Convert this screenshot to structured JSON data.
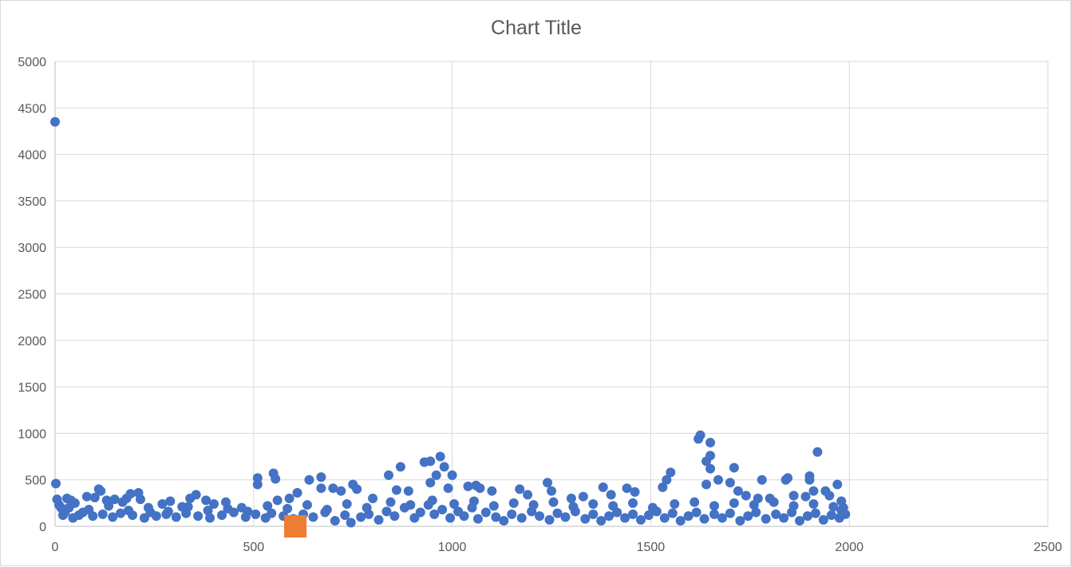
{
  "chart_data": {
    "type": "scatter",
    "title": "Chart Title",
    "xlabel": "",
    "ylabel": "",
    "xlim": [
      0,
      2500
    ],
    "ylim": [
      0,
      5000
    ],
    "x_ticks": [
      "0",
      "500",
      "1000",
      "1500",
      "2000",
      "2500"
    ],
    "y_ticks": [
      "0",
      "500",
      "1000",
      "1500",
      "2000",
      "2500",
      "3000",
      "3500",
      "4000",
      "4500",
      "5000"
    ],
    "grid": true,
    "legend": "none",
    "series": [
      {
        "color": "#4472c4",
        "marker": "circle",
        "points": [
          [
            0,
            4350
          ],
          [
            2,
            460
          ],
          [
            5,
            290
          ],
          [
            10,
            230
          ],
          [
            15,
            200
          ],
          [
            20,
            180
          ],
          [
            25,
            150
          ],
          [
            30,
            300
          ],
          [
            40,
            280
          ],
          [
            50,
            250
          ],
          [
            60,
            120
          ],
          [
            80,
            320
          ],
          [
            100,
            310
          ],
          [
            110,
            400
          ],
          [
            115,
            380
          ],
          [
            130,
            280
          ],
          [
            150,
            290
          ],
          [
            170,
            260
          ],
          [
            180,
            300
          ],
          [
            190,
            350
          ],
          [
            210,
            360
          ],
          [
            215,
            290
          ],
          [
            240,
            150
          ],
          [
            270,
            240
          ],
          [
            290,
            270
          ],
          [
            320,
            210
          ],
          [
            340,
            300
          ],
          [
            355,
            340
          ],
          [
            380,
            280
          ],
          [
            400,
            240
          ],
          [
            430,
            260
          ],
          [
            470,
            200
          ],
          [
            510,
            520
          ],
          [
            510,
            450
          ],
          [
            550,
            570
          ],
          [
            555,
            510
          ],
          [
            560,
            280
          ],
          [
            590,
            300
          ],
          [
            610,
            360
          ],
          [
            640,
            500
          ],
          [
            670,
            530
          ],
          [
            670,
            410
          ],
          [
            700,
            410
          ],
          [
            720,
            380
          ],
          [
            750,
            450
          ],
          [
            760,
            400
          ],
          [
            800,
            300
          ],
          [
            840,
            550
          ],
          [
            860,
            390
          ],
          [
            870,
            640
          ],
          [
            890,
            380
          ],
          [
            930,
            690
          ],
          [
            945,
            700
          ],
          [
            945,
            470
          ],
          [
            960,
            550
          ],
          [
            970,
            750
          ],
          [
            980,
            640
          ],
          [
            990,
            410
          ],
          [
            1000,
            550
          ],
          [
            1040,
            430
          ],
          [
            1060,
            440
          ],
          [
            1070,
            410
          ],
          [
            1100,
            380
          ],
          [
            1170,
            400
          ],
          [
            1190,
            340
          ],
          [
            1240,
            470
          ],
          [
            1250,
            380
          ],
          [
            1300,
            300
          ],
          [
            1330,
            320
          ],
          [
            1380,
            420
          ],
          [
            1400,
            340
          ],
          [
            1440,
            410
          ],
          [
            1460,
            370
          ],
          [
            1530,
            420
          ],
          [
            1540,
            500
          ],
          [
            1550,
            580
          ],
          [
            1620,
            940
          ],
          [
            1625,
            980
          ],
          [
            1640,
            700
          ],
          [
            1640,
            450
          ],
          [
            1650,
            900
          ],
          [
            1650,
            760
          ],
          [
            1650,
            620
          ],
          [
            1670,
            500
          ],
          [
            1700,
            470
          ],
          [
            1710,
            630
          ],
          [
            1720,
            380
          ],
          [
            1740,
            330
          ],
          [
            1770,
            300
          ],
          [
            1780,
            500
          ],
          [
            1800,
            300
          ],
          [
            1840,
            500
          ],
          [
            1845,
            520
          ],
          [
            1860,
            330
          ],
          [
            1890,
            320
          ],
          [
            1900,
            540
          ],
          [
            1900,
            500
          ],
          [
            1910,
            380
          ],
          [
            1920,
            800
          ],
          [
            1940,
            380
          ],
          [
            1950,
            330
          ],
          [
            1970,
            450
          ],
          [
            1980,
            270
          ],
          [
            20,
            120
          ],
          [
            45,
            90
          ],
          [
            70,
            150
          ],
          [
            95,
            110
          ],
          [
            120,
            130
          ],
          [
            145,
            100
          ],
          [
            165,
            140
          ],
          [
            195,
            120
          ],
          [
            225,
            90
          ],
          [
            255,
            110
          ],
          [
            280,
            130
          ],
          [
            305,
            100
          ],
          [
            330,
            140
          ],
          [
            360,
            110
          ],
          [
            390,
            90
          ],
          [
            420,
            120
          ],
          [
            450,
            150
          ],
          [
            480,
            100
          ],
          [
            505,
            130
          ],
          [
            530,
            90
          ],
          [
            545,
            140
          ],
          [
            575,
            110
          ],
          [
            600,
            80
          ],
          [
            625,
            130
          ],
          [
            650,
            100
          ],
          [
            680,
            150
          ],
          [
            705,
            60
          ],
          [
            730,
            120
          ],
          [
            745,
            40
          ],
          [
            770,
            100
          ],
          [
            790,
            130
          ],
          [
            815,
            70
          ],
          [
            835,
            160
          ],
          [
            855,
            110
          ],
          [
            880,
            200
          ],
          [
            905,
            90
          ],
          [
            920,
            150
          ],
          [
            940,
            230
          ],
          [
            955,
            130
          ],
          [
            975,
            180
          ],
          [
            995,
            90
          ],
          [
            1015,
            160
          ],
          [
            1030,
            110
          ],
          [
            1050,
            200
          ],
          [
            1065,
            80
          ],
          [
            1085,
            150
          ],
          [
            1110,
            100
          ],
          [
            1130,
            60
          ],
          [
            1150,
            130
          ],
          [
            1175,
            90
          ],
          [
            1200,
            160
          ],
          [
            1220,
            110
          ],
          [
            1245,
            70
          ],
          [
            1265,
            140
          ],
          [
            1285,
            100
          ],
          [
            1310,
            160
          ],
          [
            1335,
            80
          ],
          [
            1355,
            130
          ],
          [
            1375,
            60
          ],
          [
            1395,
            110
          ],
          [
            1415,
            150
          ],
          [
            1435,
            90
          ],
          [
            1455,
            130
          ],
          [
            1475,
            70
          ],
          [
            1495,
            120
          ],
          [
            1515,
            160
          ],
          [
            1535,
            90
          ],
          [
            1555,
            140
          ],
          [
            1575,
            60
          ],
          [
            1595,
            110
          ],
          [
            1615,
            150
          ],
          [
            1635,
            80
          ],
          [
            1660,
            130
          ],
          [
            1680,
            90
          ],
          [
            1700,
            140
          ],
          [
            1725,
            60
          ],
          [
            1745,
            110
          ],
          [
            1765,
            150
          ],
          [
            1790,
            80
          ],
          [
            1815,
            130
          ],
          [
            1835,
            90
          ],
          [
            1855,
            150
          ],
          [
            1875,
            60
          ],
          [
            1895,
            110
          ],
          [
            1915,
            140
          ],
          [
            1935,
            70
          ],
          [
            1955,
            120
          ],
          [
            1975,
            90
          ],
          [
            1985,
            200
          ],
          [
            1990,
            130
          ],
          [
            35,
            200
          ],
          [
            85,
            180
          ],
          [
            135,
            220
          ],
          [
            185,
            170
          ],
          [
            235,
            200
          ],
          [
            285,
            160
          ],
          [
            335,
            210
          ],
          [
            385,
            170
          ],
          [
            435,
            190
          ],
          [
            485,
            160
          ],
          [
            535,
            220
          ],
          [
            585,
            190
          ],
          [
            635,
            230
          ],
          [
            685,
            180
          ],
          [
            735,
            240
          ],
          [
            785,
            200
          ],
          [
            845,
            260
          ],
          [
            895,
            230
          ],
          [
            950,
            280
          ],
          [
            1005,
            240
          ],
          [
            1055,
            270
          ],
          [
            1105,
            220
          ],
          [
            1155,
            250
          ],
          [
            1205,
            230
          ],
          [
            1255,
            260
          ],
          [
            1305,
            210
          ],
          [
            1355,
            240
          ],
          [
            1405,
            220
          ],
          [
            1455,
            250
          ],
          [
            1505,
            200
          ],
          [
            1560,
            240
          ],
          [
            1610,
            260
          ],
          [
            1660,
            220
          ],
          [
            1710,
            250
          ],
          [
            1760,
            230
          ],
          [
            1810,
            260
          ],
          [
            1860,
            220
          ],
          [
            1910,
            240
          ],
          [
            1960,
            210
          ],
          [
            1980,
            170
          ]
        ]
      },
      {
        "color": "#ed7d31",
        "marker": "square",
        "points": [
          [
            605,
            0
          ]
        ]
      }
    ]
  }
}
